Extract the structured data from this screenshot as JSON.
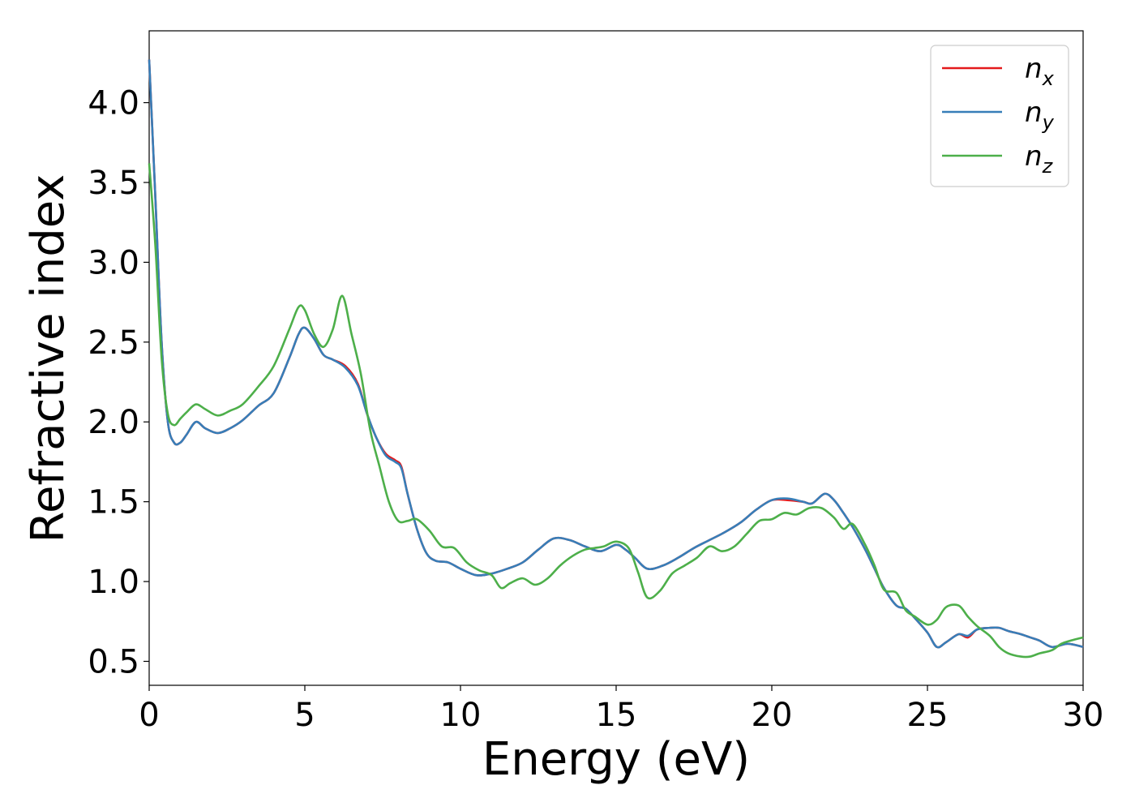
{
  "chart_data": {
    "type": "line",
    "xlabel": "Energy (eV)",
    "ylabel": "Refractive index",
    "xlim": [
      0,
      30
    ],
    "ylim": [
      0.35,
      4.45
    ],
    "xticks": [
      "0",
      "5",
      "10",
      "15",
      "20",
      "25",
      "30"
    ],
    "yticks": [
      "0.5",
      "1.0",
      "1.5",
      "2.0",
      "2.5",
      "3.0",
      "3.5",
      "4.0"
    ],
    "grid": false,
    "legend_position": "top-right",
    "series": [
      {
        "name": "n_x",
        "legend_base": "n",
        "legend_sub": "x",
        "color": "#e41a1c",
        "x": [
          0,
          0.2,
          0.4,
          0.6,
          0.8,
          1.0,
          1.2,
          1.5,
          1.8,
          2.2,
          2.6,
          3.0,
          3.5,
          4.0,
          4.5,
          4.8,
          5.0,
          5.3,
          5.6,
          5.9,
          6.3,
          6.7,
          7.0,
          7.3,
          7.6,
          7.9,
          8.1,
          8.3,
          8.6,
          8.9,
          9.2,
          9.6,
          10.0,
          10.5,
          11.0,
          11.5,
          12.0,
          12.5,
          13.0,
          13.5,
          14.0,
          14.5,
          15.0,
          15.3,
          15.6,
          16.0,
          16.5,
          17.0,
          17.5,
          18.0,
          18.5,
          19.0,
          19.5,
          20.0,
          20.5,
          21.0,
          21.3,
          21.7,
          22.0,
          22.3,
          22.6,
          23.0,
          23.3,
          23.6,
          24.0,
          24.3,
          24.6,
          25.0,
          25.3,
          25.6,
          26.0,
          26.3,
          26.6,
          27.0,
          27.3,
          27.6,
          28.0,
          28.3,
          28.6,
          29.0,
          29.5,
          30.0
        ],
        "y": [
          4.27,
          3.4,
          2.5,
          2.0,
          1.87,
          1.87,
          1.92,
          2.0,
          1.96,
          1.93,
          1.96,
          2.01,
          2.1,
          2.18,
          2.4,
          2.55,
          2.59,
          2.52,
          2.42,
          2.39,
          2.35,
          2.24,
          2.05,
          1.9,
          1.8,
          1.76,
          1.72,
          1.55,
          1.33,
          1.18,
          1.13,
          1.12,
          1.08,
          1.04,
          1.05,
          1.08,
          1.12,
          1.2,
          1.27,
          1.26,
          1.22,
          1.19,
          1.23,
          1.2,
          1.15,
          1.08,
          1.1,
          1.15,
          1.21,
          1.26,
          1.31,
          1.37,
          1.45,
          1.51,
          1.51,
          1.5,
          1.49,
          1.55,
          1.51,
          1.43,
          1.34,
          1.2,
          1.08,
          0.96,
          0.85,
          0.83,
          0.77,
          0.68,
          0.59,
          0.62,
          0.67,
          0.65,
          0.7,
          0.71,
          0.71,
          0.69,
          0.67,
          0.65,
          0.63,
          0.59,
          0.61,
          0.59
        ]
      },
      {
        "name": "n_y",
        "legend_base": "n",
        "legend_sub": "y",
        "color": "#377eb8",
        "x": [
          0,
          0.2,
          0.4,
          0.6,
          0.8,
          1.0,
          1.2,
          1.5,
          1.8,
          2.2,
          2.6,
          3.0,
          3.5,
          4.0,
          4.5,
          4.8,
          5.0,
          5.3,
          5.6,
          5.9,
          6.3,
          6.7,
          7.0,
          7.3,
          7.6,
          7.9,
          8.1,
          8.3,
          8.6,
          8.9,
          9.2,
          9.6,
          10.0,
          10.5,
          11.0,
          11.5,
          12.0,
          12.5,
          13.0,
          13.5,
          14.0,
          14.5,
          15.0,
          15.3,
          15.6,
          16.0,
          16.5,
          17.0,
          17.5,
          18.0,
          18.5,
          19.0,
          19.5,
          20.0,
          20.5,
          21.0,
          21.3,
          21.7,
          22.0,
          22.3,
          22.6,
          23.0,
          23.3,
          23.6,
          24.0,
          24.3,
          24.6,
          25.0,
          25.3,
          25.6,
          26.0,
          26.3,
          26.6,
          27.0,
          27.3,
          27.6,
          28.0,
          28.3,
          28.6,
          29.0,
          29.5,
          30.0
        ],
        "y": [
          4.27,
          3.4,
          2.5,
          2.0,
          1.87,
          1.87,
          1.92,
          2.0,
          1.96,
          1.93,
          1.96,
          2.01,
          2.1,
          2.18,
          2.4,
          2.55,
          2.59,
          2.52,
          2.42,
          2.39,
          2.34,
          2.23,
          2.05,
          1.9,
          1.79,
          1.75,
          1.71,
          1.55,
          1.33,
          1.18,
          1.13,
          1.12,
          1.08,
          1.04,
          1.05,
          1.08,
          1.12,
          1.2,
          1.27,
          1.26,
          1.22,
          1.19,
          1.23,
          1.2,
          1.15,
          1.08,
          1.1,
          1.15,
          1.21,
          1.26,
          1.31,
          1.37,
          1.45,
          1.51,
          1.52,
          1.5,
          1.49,
          1.55,
          1.51,
          1.43,
          1.34,
          1.2,
          1.08,
          0.96,
          0.85,
          0.83,
          0.77,
          0.68,
          0.59,
          0.62,
          0.67,
          0.66,
          0.7,
          0.71,
          0.71,
          0.69,
          0.67,
          0.65,
          0.63,
          0.59,
          0.61,
          0.59
        ]
      },
      {
        "name": "n_z",
        "legend_base": "n",
        "legend_sub": "z",
        "color": "#4daf4a",
        "x": [
          0,
          0.2,
          0.4,
          0.6,
          0.8,
          1.0,
          1.2,
          1.5,
          1.8,
          2.2,
          2.6,
          3.0,
          3.5,
          4.0,
          4.5,
          4.8,
          5.0,
          5.3,
          5.6,
          5.9,
          6.2,
          6.5,
          6.8,
          7.1,
          7.4,
          7.7,
          8.0,
          8.3,
          8.6,
          9.0,
          9.4,
          9.8,
          10.2,
          10.6,
          11.0,
          11.3,
          11.6,
          12.0,
          12.4,
          12.8,
          13.2,
          13.6,
          14.0,
          14.3,
          14.6,
          15.0,
          15.4,
          15.7,
          16.0,
          16.4,
          16.8,
          17.2,
          17.6,
          18.0,
          18.4,
          18.8,
          19.2,
          19.6,
          20.0,
          20.4,
          20.8,
          21.2,
          21.6,
          22.0,
          22.3,
          22.6,
          23.0,
          23.3,
          23.6,
          24.0,
          24.3,
          24.6,
          25.0,
          25.3,
          25.6,
          26.0,
          26.3,
          26.6,
          27.0,
          27.3,
          27.6,
          28.0,
          28.3,
          28.6,
          29.0,
          29.3,
          29.6,
          30.0
        ],
        "y": [
          3.62,
          3.1,
          2.4,
          2.05,
          1.98,
          2.02,
          2.06,
          2.11,
          2.08,
          2.04,
          2.07,
          2.11,
          2.22,
          2.35,
          2.58,
          2.72,
          2.7,
          2.55,
          2.47,
          2.58,
          2.79,
          2.55,
          2.3,
          1.95,
          1.72,
          1.5,
          1.38,
          1.38,
          1.39,
          1.32,
          1.22,
          1.21,
          1.12,
          1.07,
          1.04,
          0.96,
          0.99,
          1.02,
          0.98,
          1.02,
          1.1,
          1.16,
          1.2,
          1.21,
          1.22,
          1.25,
          1.21,
          1.06,
          0.9,
          0.94,
          1.05,
          1.1,
          1.15,
          1.22,
          1.19,
          1.22,
          1.3,
          1.38,
          1.39,
          1.43,
          1.42,
          1.46,
          1.46,
          1.4,
          1.33,
          1.36,
          1.23,
          1.1,
          0.95,
          0.93,
          0.82,
          0.78,
          0.73,
          0.76,
          0.84,
          0.85,
          0.78,
          0.72,
          0.66,
          0.59,
          0.55,
          0.53,
          0.53,
          0.55,
          0.57,
          0.61,
          0.63,
          0.65
        ]
      }
    ]
  }
}
